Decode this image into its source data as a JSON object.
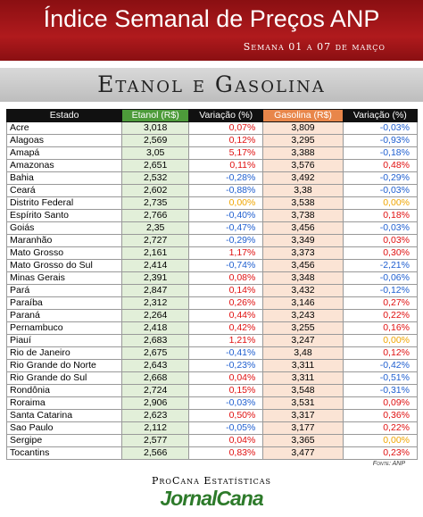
{
  "header": {
    "title": "Índice Semanal de Preços ANP",
    "subtitle": "Semana 01 a 07 de março"
  },
  "section_title": "Etanol e Gasolina",
  "table": {
    "columns": [
      "Estado",
      "Etanol (R$)",
      "Variação (%)",
      "Gasolina (R$)",
      "Variação (%)"
    ],
    "rows": [
      [
        "Acre",
        "3,018",
        "0,07%",
        "3,809",
        "-0,03%"
      ],
      [
        "Alagoas",
        "2,569",
        "0,12%",
        "3,295",
        "-0,93%"
      ],
      [
        "Amapá",
        "3,05",
        "5,17%",
        "3,388",
        "-0,18%"
      ],
      [
        "Amazonas",
        "2,651",
        "0,11%",
        "3,576",
        "0,48%"
      ],
      [
        "Bahia",
        "2,532",
        "-0,28%",
        "3,492",
        "-0,29%"
      ],
      [
        "Ceará",
        "2,602",
        "-0,88%",
        "3,38",
        "-0,03%"
      ],
      [
        "Distrito Federal",
        "2,735",
        "0,00%",
        "3,538",
        "0,00%"
      ],
      [
        "Espírito Santo",
        "2,766",
        "-0,40%",
        "3,738",
        "0,18%"
      ],
      [
        "Goiás",
        "2,35",
        "-0,47%",
        "3,456",
        "-0,03%"
      ],
      [
        "Maranhão",
        "2,727",
        "-0,29%",
        "3,349",
        "0,03%"
      ],
      [
        "Mato Grosso",
        "2,161",
        "1,17%",
        "3,373",
        "0,30%"
      ],
      [
        "Mato Grosso do Sul",
        "2,414",
        "-0,74%",
        "3,456",
        "-2,21%"
      ],
      [
        "Minas Gerais",
        "2,391",
        "0,08%",
        "3,348",
        "-0,06%"
      ],
      [
        "Pará",
        "2,847",
        "0,14%",
        "3,432",
        "-0,12%"
      ],
      [
        "Paraíba",
        "2,312",
        "0,26%",
        "3,146",
        "0,27%"
      ],
      [
        "Paraná",
        "2,264",
        "0,44%",
        "3,243",
        "0,22%"
      ],
      [
        "Pernambuco",
        "2,418",
        "0,42%",
        "3,255",
        "0,16%"
      ],
      [
        "Piauí",
        "2,683",
        "1,21%",
        "3,247",
        "0,00%"
      ],
      [
        "Rio de Janeiro",
        "2,675",
        "-0,41%",
        "3,48",
        "0,12%"
      ],
      [
        "Rio Grande do Norte",
        "2,643",
        "-0,23%",
        "3,311",
        "-0,42%"
      ],
      [
        "Rio Grande do Sul",
        "2,668",
        "0,04%",
        "3,311",
        "-0,51%"
      ],
      [
        "Rondônia",
        "2,724",
        "0,15%",
        "3,548",
        "-0,31%"
      ],
      [
        "Roraima",
        "2,906",
        "-0,03%",
        "3,531",
        "0,09%"
      ],
      [
        "Santa Catarina",
        "2,623",
        "0,50%",
        "3,317",
        "0,36%"
      ],
      [
        "Sao Paulo",
        "2,112",
        "-0,05%",
        "3,177",
        "0,22%"
      ],
      [
        "Sergipe",
        "2,577",
        "0,04%",
        "3,365",
        "0,00%"
      ],
      [
        "Tocantins",
        "2,566",
        "0,83%",
        "3,477",
        "0,23%"
      ]
    ]
  },
  "source": "Fonte: ANP",
  "footer": {
    "credit": "ProCana Estatísticas",
    "brand": "JornalCana"
  }
}
